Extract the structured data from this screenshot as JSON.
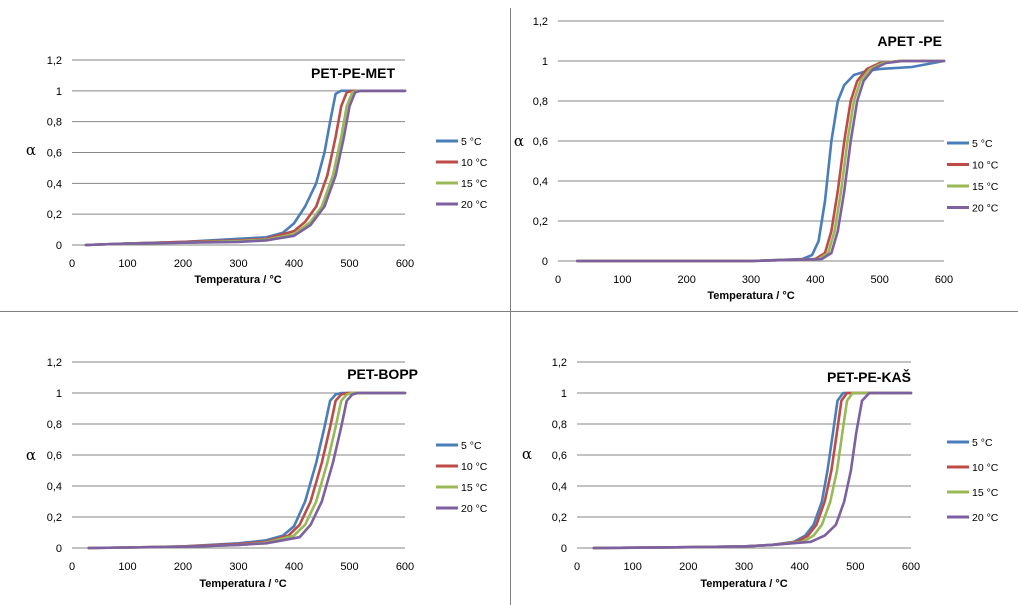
{
  "colors": {
    "5": "#4a7ebb",
    "10": "#be4b48",
    "15": "#98b954",
    "20": "#7d60a0"
  },
  "chart_data": [
    {
      "type": "line",
      "title": "PET-PE-MET",
      "xlabel": "Temperatura / °C",
      "ylabel": "α",
      "xlim": [
        0,
        600
      ],
      "ylim": [
        0,
        1.2
      ],
      "xticks": [
        "0",
        "100",
        "200",
        "300",
        "400",
        "500",
        "600"
      ],
      "yticks": [
        "0",
        "0,2",
        "0,4",
        "0,6",
        "0,8",
        "1",
        "1,2"
      ],
      "grid": "horizontal",
      "legend": "right",
      "series": [
        {
          "name": "5 °C",
          "color": "#4a7ebb",
          "x": [
            25,
            100,
            200,
            300,
            350,
            380,
            400,
            420,
            440,
            455,
            465,
            475,
            485,
            500,
            600
          ],
          "y": [
            0,
            0.01,
            0.02,
            0.04,
            0.05,
            0.08,
            0.14,
            0.25,
            0.4,
            0.6,
            0.8,
            0.98,
            1.0,
            1.0,
            1.0
          ]
        },
        {
          "name": "10 °C",
          "color": "#be4b48",
          "x": [
            25,
            100,
            200,
            300,
            350,
            400,
            420,
            440,
            460,
            475,
            485,
            495,
            505,
            600
          ],
          "y": [
            0,
            0.01,
            0.02,
            0.03,
            0.04,
            0.09,
            0.15,
            0.25,
            0.45,
            0.7,
            0.9,
            0.99,
            1.0,
            1.0
          ]
        },
        {
          "name": "15 °C",
          "color": "#98b954",
          "x": [
            25,
            100,
            200,
            300,
            350,
            400,
            430,
            450,
            470,
            485,
            495,
            505,
            515,
            600
          ],
          "y": [
            0,
            0.01,
            0.015,
            0.025,
            0.035,
            0.07,
            0.15,
            0.25,
            0.45,
            0.7,
            0.9,
            0.99,
            1.0,
            1.0
          ]
        },
        {
          "name": "20 °C",
          "color": "#7d60a0",
          "x": [
            25,
            100,
            200,
            300,
            350,
            400,
            430,
            455,
            475,
            490,
            500,
            510,
            520,
            600
          ],
          "y": [
            0,
            0.01,
            0.015,
            0.02,
            0.03,
            0.06,
            0.13,
            0.25,
            0.45,
            0.7,
            0.9,
            0.99,
            1.0,
            1.0
          ]
        }
      ]
    },
    {
      "type": "line",
      "title": "APET -PE",
      "xlabel": "Temperatura / °C",
      "ylabel": "α",
      "xlim": [
        0,
        600
      ],
      "ylim": [
        0,
        1.2
      ],
      "xticks": [
        "0",
        "100",
        "200",
        "300",
        "400",
        "500",
        "600"
      ],
      "yticks": [
        "0",
        "0,2",
        "0,4",
        "0,6",
        "0,8",
        "1",
        "1,2"
      ],
      "grid": "horizontal",
      "legend": "right",
      "series": [
        {
          "name": "5 °C",
          "color": "#4a7ebb",
          "x": [
            30,
            300,
            380,
            395,
            405,
            415,
            425,
            435,
            445,
            460,
            480,
            500,
            550,
            600
          ],
          "y": [
            0,
            0.0,
            0.01,
            0.03,
            0.1,
            0.3,
            0.6,
            0.8,
            0.88,
            0.93,
            0.95,
            0.96,
            0.97,
            1.0
          ]
        },
        {
          "name": "10 °C",
          "color": "#be4b48",
          "x": [
            30,
            300,
            400,
            415,
            425,
            435,
            445,
            455,
            465,
            480,
            500,
            530,
            600
          ],
          "y": [
            0,
            0.0,
            0.01,
            0.04,
            0.15,
            0.35,
            0.6,
            0.8,
            0.9,
            0.96,
            0.99,
            1.0,
            1.0
          ]
        },
        {
          "name": "15 °C",
          "color": "#98b954",
          "x": [
            30,
            300,
            405,
            420,
            430,
            440,
            450,
            460,
            470,
            485,
            505,
            530,
            600
          ],
          "y": [
            0,
            0.0,
            0.01,
            0.04,
            0.15,
            0.35,
            0.6,
            0.8,
            0.9,
            0.96,
            0.99,
            1.0,
            1.0
          ]
        },
        {
          "name": "20 °C",
          "color": "#7d60a0",
          "x": [
            30,
            300,
            410,
            425,
            435,
            445,
            455,
            465,
            475,
            490,
            510,
            535,
            600
          ],
          "y": [
            0,
            0.0,
            0.01,
            0.04,
            0.15,
            0.35,
            0.6,
            0.8,
            0.9,
            0.96,
            0.99,
            1.0,
            1.0
          ]
        }
      ]
    },
    {
      "type": "line",
      "title": "PET-BOPP",
      "xlabel": "Temperatura / °C",
      "ylabel": "α",
      "xlim": [
        0,
        600
      ],
      "ylim": [
        0,
        1.2
      ],
      "xticks": [
        "0",
        "100",
        "200",
        "300",
        "400",
        "500",
        "600"
      ],
      "yticks": [
        "0",
        "0,2",
        "0,4",
        "0,6",
        "0,8",
        "1",
        "1,2"
      ],
      "grid": "horizontal",
      "legend": "right",
      "series": [
        {
          "name": "5 °C",
          "color": "#4a7ebb",
          "x": [
            30,
            100,
            200,
            300,
            350,
            380,
            400,
            420,
            440,
            455,
            465,
            475,
            485,
            600
          ],
          "y": [
            0,
            0.003,
            0.01,
            0.03,
            0.05,
            0.08,
            0.14,
            0.3,
            0.55,
            0.78,
            0.95,
            0.99,
            1.0,
            1.0
          ]
        },
        {
          "name": "10 °C",
          "color": "#be4b48",
          "x": [
            30,
            100,
            200,
            300,
            350,
            390,
            410,
            430,
            450,
            465,
            475,
            485,
            495,
            600
          ],
          "y": [
            0,
            0.003,
            0.01,
            0.025,
            0.04,
            0.08,
            0.15,
            0.3,
            0.55,
            0.78,
            0.95,
            0.99,
            1.0,
            1.0
          ]
        },
        {
          "name": "15 °C",
          "color": "#98b954",
          "x": [
            30,
            100,
            200,
            300,
            350,
            400,
            420,
            440,
            460,
            475,
            485,
            495,
            505,
            600
          ],
          "y": [
            0,
            0.003,
            0.008,
            0.02,
            0.035,
            0.08,
            0.15,
            0.3,
            0.55,
            0.78,
            0.95,
            0.99,
            1.0,
            1.0
          ]
        },
        {
          "name": "20 °C",
          "color": "#7d60a0",
          "x": [
            30,
            100,
            200,
            300,
            350,
            410,
            430,
            450,
            470,
            485,
            495,
            505,
            515,
            600
          ],
          "y": [
            0,
            0.003,
            0.008,
            0.02,
            0.03,
            0.07,
            0.15,
            0.3,
            0.55,
            0.78,
            0.95,
            0.99,
            1.0,
            1.0
          ]
        }
      ]
    },
    {
      "type": "line",
      "title": "PET-PE-KAŠ",
      "xlabel": "Temperatura / °C",
      "ylabel": "α",
      "xlim": [
        0,
        600
      ],
      "ylim": [
        0,
        1.2
      ],
      "xticks": [
        "0",
        "100",
        "200",
        "300",
        "400",
        "500",
        "600"
      ],
      "yticks": [
        "0",
        "0,2",
        "0,4",
        "0,6",
        "0,8",
        "1",
        "1,2"
      ],
      "grid": "horizontal",
      "legend": "right",
      "series": [
        {
          "name": "5 °C",
          "color": "#4a7ebb",
          "x": [
            30,
            100,
            200,
            300,
            350,
            390,
            410,
            425,
            440,
            450,
            460,
            468,
            478,
            600
          ],
          "y": [
            0,
            0.002,
            0.005,
            0.01,
            0.02,
            0.04,
            0.08,
            0.15,
            0.3,
            0.5,
            0.75,
            0.95,
            1.0,
            1.0
          ]
        },
        {
          "name": "10 °C",
          "color": "#be4b48",
          "x": [
            30,
            100,
            200,
            300,
            350,
            395,
            415,
            430,
            445,
            457,
            467,
            475,
            485,
            600
          ],
          "y": [
            0,
            0.002,
            0.005,
            0.01,
            0.02,
            0.04,
            0.08,
            0.15,
            0.3,
            0.5,
            0.75,
            0.95,
            1.0,
            1.0
          ]
        },
        {
          "name": "15 °C",
          "color": "#98b954",
          "x": [
            30,
            100,
            200,
            300,
            350,
            405,
            425,
            440,
            455,
            467,
            477,
            485,
            495,
            600
          ],
          "y": [
            0,
            0.002,
            0.005,
            0.01,
            0.02,
            0.04,
            0.08,
            0.15,
            0.3,
            0.5,
            0.75,
            0.95,
            1.0,
            1.0
          ]
        },
        {
          "name": "20 °C",
          "color": "#7d60a0",
          "x": [
            30,
            100,
            200,
            300,
            350,
            420,
            445,
            465,
            480,
            492,
            502,
            512,
            525,
            600
          ],
          "y": [
            0,
            0.002,
            0.005,
            0.01,
            0.02,
            0.04,
            0.08,
            0.15,
            0.3,
            0.5,
            0.75,
            0.95,
            1.0,
            1.0
          ]
        }
      ]
    }
  ]
}
